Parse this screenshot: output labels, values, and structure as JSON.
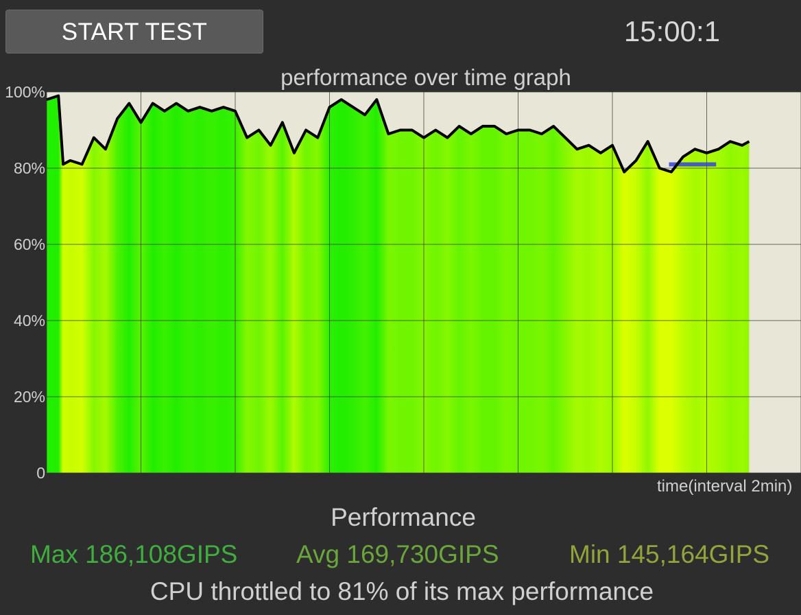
{
  "header": {
    "start_button_label": "START TEST",
    "timer": "15:00:1"
  },
  "graph": {
    "title": "performance over time graph",
    "xlabel": "time(interval 2min)"
  },
  "stats": {
    "heading": "Performance",
    "max": "Max 186,108GIPS",
    "avg": "Avg 169,730GIPS",
    "min": "Min 145,164GIPS",
    "summary": "CPU throttled to 81% of its max performance"
  },
  "colors": {
    "background": "#2d2d2d",
    "plot_background": "#e8e6d6",
    "line": "#000000",
    "min_marker": "#3344dd",
    "fill_green": "#22ee00",
    "fill_yellow": "#ddff00",
    "max_text": "#3fae3f",
    "avg_text": "#6aa639",
    "min_text": "#95a33b"
  },
  "chart_data": {
    "type": "area",
    "title": "performance over time graph",
    "xlabel": "time(interval 2min)",
    "ylabel": "",
    "yticks": [
      "0",
      "20%",
      "40%",
      "60%",
      "80%",
      "100%"
    ],
    "ylim": [
      0,
      100
    ],
    "xlim": [
      0,
      16
    ],
    "x_unit": "minutes",
    "grid": true,
    "min_marker": {
      "x_start": 13.2,
      "x_end": 14.2,
      "y": 81
    },
    "x": [
      0,
      0.25,
      0.35,
      0.5,
      0.75,
      1,
      1.25,
      1.5,
      1.75,
      2,
      2.25,
      2.5,
      2.75,
      3,
      3.25,
      3.5,
      3.75,
      4,
      4.25,
      4.5,
      4.75,
      5,
      5.25,
      5.5,
      5.75,
      6,
      6.25,
      6.5,
      6.75,
      7,
      7.25,
      7.5,
      7.75,
      8,
      8.25,
      8.5,
      8.75,
      9,
      9.25,
      9.5,
      9.75,
      10,
      10.25,
      10.5,
      10.75,
      11,
      11.25,
      11.5,
      11.75,
      12,
      12.25,
      12.5,
      12.75,
      13,
      13.25,
      13.5,
      13.75,
      14,
      14.25,
      14.5,
      14.75,
      14.9
    ],
    "values": [
      98,
      99,
      81,
      82,
      81,
      88,
      85,
      93,
      97,
      92,
      97,
      95,
      97,
      95,
      96,
      95,
      96,
      95,
      88,
      90,
      86,
      92,
      84,
      90,
      88,
      96,
      98,
      96,
      94,
      98,
      89,
      90,
      90,
      88,
      90,
      88,
      91,
      89,
      91,
      91,
      89,
      90,
      90,
      89,
      91,
      88,
      85,
      86,
      84,
      86,
      79,
      82,
      87,
      80,
      79,
      83,
      85,
      84,
      85,
      87,
      86,
      87
    ]
  }
}
